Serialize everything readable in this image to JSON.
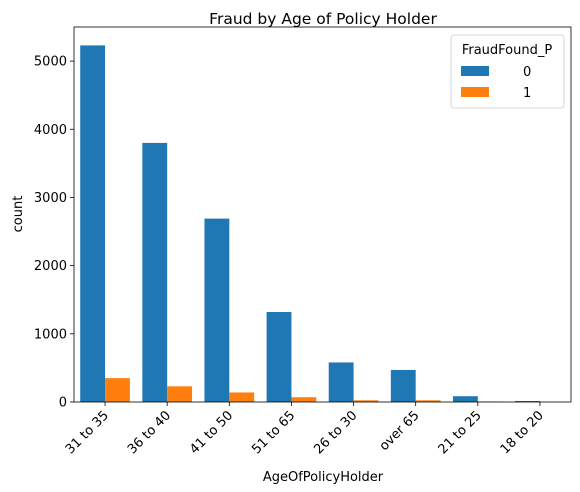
{
  "chart_data": {
    "type": "bar",
    "title": "Fraud by Age of Policy Holder",
    "xlabel": "AgeOfPolicyHolder",
    "ylabel": "count",
    "categories": [
      "31 to 35",
      "36 to 40",
      "41 to 50",
      "51 to 65",
      "26 to 30",
      "over 65",
      "21 to 25",
      "18 to 20"
    ],
    "series": [
      {
        "name": "0",
        "color": "#1f77b4",
        "values": [
          5230,
          3800,
          2690,
          1320,
          580,
          470,
          85,
          15
        ]
      },
      {
        "name": "1",
        "color": "#ff7f0e",
        "values": [
          350,
          230,
          140,
          70,
          25,
          25,
          8,
          0
        ]
      }
    ],
    "ylim": [
      0,
      5500
    ],
    "yticks": [
      0,
      1000,
      2000,
      3000,
      4000,
      5000
    ],
    "legend": {
      "title": "FraudFound_P",
      "position": "top-right"
    },
    "grid": false
  }
}
